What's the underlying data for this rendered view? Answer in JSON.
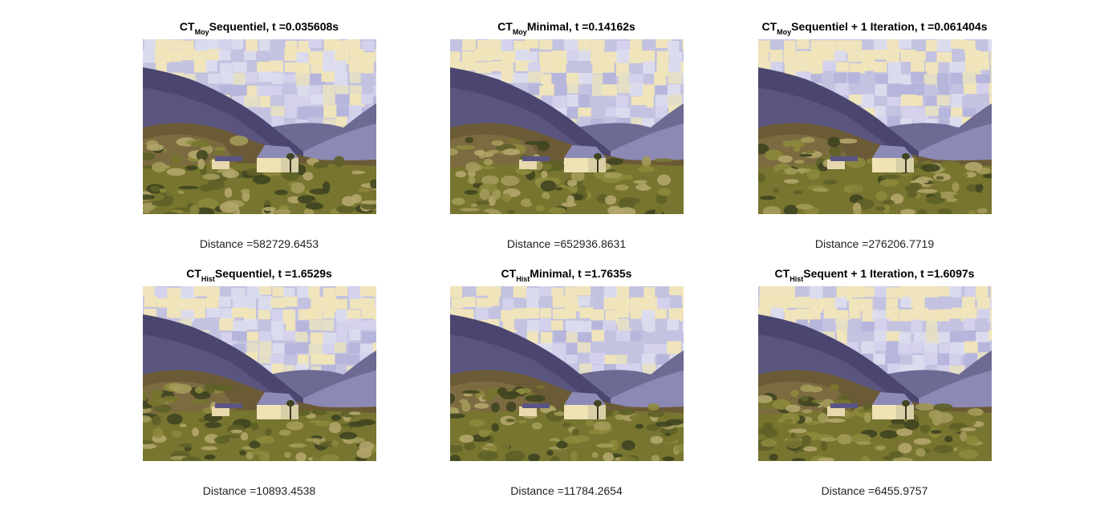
{
  "figure": {
    "panels": [
      {
        "ct": "CT",
        "sub": "Moy",
        "rest": "Sequentiel, t =0.035608s",
        "distance": "Distance =582729.6453",
        "variant": 0
      },
      {
        "ct": "CT",
        "sub": "Moy",
        "rest": "Minimal, t =0.14162s",
        "distance": "Distance =652936.8631",
        "variant": 1
      },
      {
        "ct": "CT",
        "sub": "Moy",
        "rest": "Sequentiel + 1 Iteration, t =0.061404s",
        "distance": "Distance =276206.7719",
        "variant": 2
      },
      {
        "ct": "CT",
        "sub": "Hist",
        "rest": "Sequentiel, t =1.6529s",
        "distance": "Distance =10893.4538",
        "variant": 3
      },
      {
        "ct": "CT",
        "sub": "Hist",
        "rest": "Minimal, t =1.7635s",
        "distance": "Distance =11784.2654",
        "variant": 4
      },
      {
        "ct": "CT",
        "sub": "Hist",
        "rest": "Sequent + 1 Iteration, t =1.6097s",
        "distance": "Distance =6455.9757",
        "variant": 5
      }
    ]
  },
  "colors": {
    "sky": "#c3c2e0",
    "sky_light": "#dcdcee",
    "sky_cream": "#f1e6b8",
    "mountain_dark": "#4a4670",
    "mountain_mid": "#6d6a93",
    "hill_brown": "#6b5a36",
    "grass_olive": "#77752f",
    "grass_light": "#a39b5a",
    "grass_dark": "#3f4520",
    "house_wall": "#efe2b4",
    "house_roof": "#8d8ab8"
  }
}
